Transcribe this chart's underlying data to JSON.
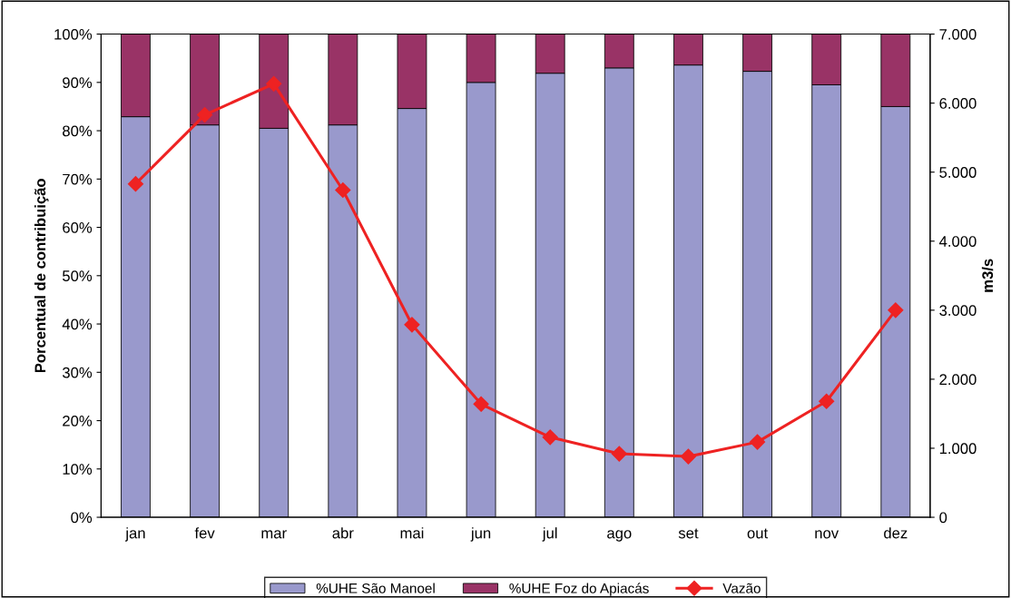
{
  "chart_data": {
    "type": "bar",
    "stacked": true,
    "ylabel": "Porcentual de contribuição",
    "y2label": "m3/s",
    "categories": [
      "jan",
      "fev",
      "mar",
      "abr",
      "mai",
      "jun",
      "jul",
      "ago",
      "set",
      "out",
      "nov",
      "dez"
    ],
    "series": [
      {
        "name": "%UHE São Manoel",
        "color": "#9999cc",
        "values": [
          82.9,
          81.2,
          80.5,
          81.2,
          84.6,
          90.0,
          91.9,
          93.0,
          93.6,
          92.3,
          89.5,
          85.0
        ]
      },
      {
        "name": "%UHE Foz do Apiacás",
        "color": "#993366",
        "values": [
          17.1,
          18.8,
          19.5,
          18.8,
          15.4,
          10.0,
          8.1,
          7.0,
          6.4,
          7.7,
          10.5,
          15.0
        ]
      },
      {
        "name": "Vazão",
        "type": "line",
        "axis": "y2",
        "color": "#ee2222",
        "marker": "diamond",
        "values": [
          4830,
          5830,
          6280,
          4740,
          2790,
          1640,
          1160,
          920,
          880,
          1090,
          1680,
          3000
        ]
      }
    ],
    "ylim": [
      0,
      100
    ],
    "yticks": [
      {
        "value": 0,
        "label": "0%"
      },
      {
        "value": 10,
        "label": "10%"
      },
      {
        "value": 20,
        "label": "20%"
      },
      {
        "value": 30,
        "label": "30%"
      },
      {
        "value": 40,
        "label": "40%"
      },
      {
        "value": 50,
        "label": "50%"
      },
      {
        "value": 60,
        "label": "60%"
      },
      {
        "value": 70,
        "label": "70%"
      },
      {
        "value": 80,
        "label": "80%"
      },
      {
        "value": 90,
        "label": "90%"
      },
      {
        "value": 100,
        "label": "100%"
      }
    ],
    "y2lim": [
      0,
      7000
    ],
    "y2ticks": [
      0,
      {
        "value": 1000,
        "label": "1.000"
      },
      {
        "value": 2000,
        "label": "2.000"
      },
      {
        "value": 3000,
        "label": "3.000"
      },
      {
        "value": 4000,
        "label": "4.000"
      },
      {
        "value": 5000,
        "label": "5.000"
      },
      {
        "value": 6000,
        "label": "6.000"
      },
      {
        "value": 7000,
        "label": "7.000"
      }
    ],
    "grid": false,
    "legend": "bottom"
  }
}
